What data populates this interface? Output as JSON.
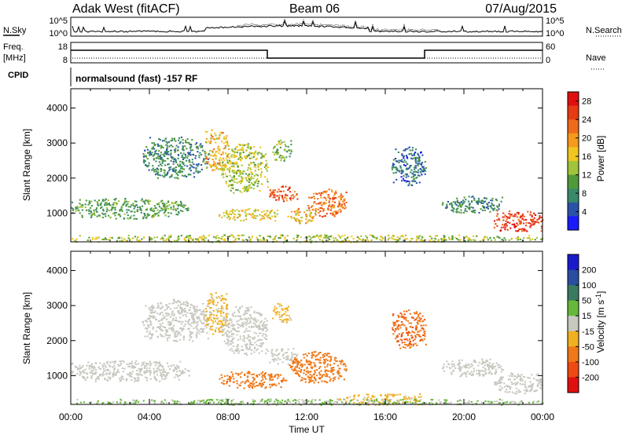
{
  "header": {
    "station": "Adak West (fitACF)",
    "beam": "Beam 06",
    "date": "07/Aug/2015"
  },
  "status_panels": {
    "nsky_label": "N.Sky",
    "nsky_ticks": [
      "10^5",
      "10^0"
    ],
    "nsearch_label": "N.Search",
    "nsearch_ticks": [
      "10^5",
      "10^0"
    ],
    "freq_label": "Freq.",
    "freq_unit": "[MHz]",
    "freq_ticks": [
      "18",
      "8"
    ],
    "nave_label": "Nave",
    "nave_ticks": [
      "60",
      "0"
    ],
    "cpid_label": "CPID",
    "cpid_text": "normalsound (fast) -157 RF"
  },
  "colors": {
    "power_scale": [
      "#1a1aff",
      "#2a53a8",
      "#3a8a6a",
      "#4f9a3a",
      "#a0c43a",
      "#f2c61f",
      "#f59a1c",
      "#f06a1a",
      "#e83a14",
      "#e01010"
    ],
    "velocity_scale": [
      "#1a1acc",
      "#2a4ea0",
      "#3a7a60",
      "#66b83a",
      "#c8c8c0",
      "#f0b020",
      "#f07818",
      "#ee4a12",
      "#e01010"
    ]
  },
  "chart_data": [
    {
      "type": "heatmap",
      "title": "",
      "xlabel": "",
      "ylabel": "Slant Range [km]",
      "x_ticks": [
        "00:00",
        "04:00",
        "08:00",
        "12:00",
        "16:00",
        "20:00",
        "00:00"
      ],
      "y_ticks": [
        "1000",
        "2000",
        "3000",
        "4000"
      ],
      "xlim": [
        0,
        24
      ],
      "ylim": [
        180,
        4550
      ],
      "colorbar": {
        "label": "Power [dB]",
        "ticks": [
          "4",
          "8",
          "12",
          "16",
          "20",
          "24",
          "28"
        ],
        "range": [
          0,
          30
        ]
      },
      "regions": [
        {
          "t0": 0.0,
          "t1": 6.0,
          "r0": 850,
          "r1": 1450,
          "value": 10
        },
        {
          "t0": 3.6,
          "t1": 7.0,
          "r0": 2000,
          "r1": 3200,
          "value": 8
        },
        {
          "t0": 6.8,
          "t1": 8.0,
          "r0": 2200,
          "r1": 3400,
          "value": 18
        },
        {
          "t0": 7.6,
          "t1": 10.0,
          "r0": 1600,
          "r1": 3000,
          "value": 14
        },
        {
          "t0": 7.5,
          "t1": 10.5,
          "r0": 800,
          "r1": 1150,
          "value": 16
        },
        {
          "t0": 10.0,
          "t1": 11.5,
          "r0": 1350,
          "r1": 1800,
          "value": 24
        },
        {
          "t0": 11.0,
          "t1": 12.5,
          "r0": 700,
          "r1": 1150,
          "value": 18
        },
        {
          "t0": 12.0,
          "t1": 14.0,
          "r0": 900,
          "r1": 1700,
          "value": 22
        },
        {
          "t0": 10.2,
          "t1": 11.2,
          "r0": 2500,
          "r1": 3100,
          "value": 12
        },
        {
          "t0": 16.3,
          "t1": 18.1,
          "r0": 1800,
          "r1": 2900,
          "value": 6
        },
        {
          "t0": 18.8,
          "t1": 22.0,
          "r0": 1000,
          "r1": 1500,
          "value": 8
        },
        {
          "t0": 21.5,
          "t1": 24.0,
          "r0": 500,
          "r1": 1100,
          "value": 26
        },
        {
          "t0": 0.0,
          "t1": 24.0,
          "r0": 180,
          "r1": 400,
          "value": 14
        }
      ]
    },
    {
      "type": "heatmap",
      "title": "",
      "xlabel": "Time UT",
      "ylabel": "Slant Range [km]",
      "x_ticks": [
        "00:00",
        "04:00",
        "08:00",
        "12:00",
        "16:00",
        "20:00",
        "00:00"
      ],
      "y_ticks": [
        "1000",
        "2000",
        "3000",
        "4000"
      ],
      "xlim": [
        0,
        24
      ],
      "ylim": [
        180,
        4550
      ],
      "colorbar": {
        "label": "Velocity [m s^-1]",
        "ticks": [
          "200",
          "100",
          "50",
          "15",
          "-15",
          "-50",
          "-100",
          "-200"
        ],
        "range": [
          -250,
          250
        ]
      },
      "regions": [
        {
          "t0": 0.0,
          "t1": 6.0,
          "r0": 850,
          "r1": 1450,
          "value": 0
        },
        {
          "t0": 3.6,
          "t1": 7.0,
          "r0": 2000,
          "r1": 3200,
          "value": 0
        },
        {
          "t0": 6.8,
          "t1": 8.0,
          "r0": 2200,
          "r1": 3400,
          "value": -40
        },
        {
          "t0": 7.6,
          "t1": 10.0,
          "r0": 1600,
          "r1": 3000,
          "value": 0
        },
        {
          "t0": 7.5,
          "t1": 11.0,
          "r0": 650,
          "r1": 1150,
          "value": -120
        },
        {
          "t0": 10.0,
          "t1": 11.5,
          "r0": 1350,
          "r1": 1800,
          "value": 0
        },
        {
          "t0": 11.0,
          "t1": 14.0,
          "r0": 800,
          "r1": 1700,
          "value": -110
        },
        {
          "t0": 10.2,
          "t1": 11.2,
          "r0": 2500,
          "r1": 3100,
          "value": -40
        },
        {
          "t0": 16.3,
          "t1": 18.1,
          "r0": 1800,
          "r1": 2900,
          "value": -130
        },
        {
          "t0": 18.8,
          "t1": 22.0,
          "r0": 1000,
          "r1": 1500,
          "value": 0
        },
        {
          "t0": 21.5,
          "t1": 24.0,
          "r0": 500,
          "r1": 1100,
          "value": 0
        },
        {
          "t0": 13.5,
          "t1": 18.0,
          "r0": 180,
          "r1": 500,
          "value": -40
        },
        {
          "t0": 0.0,
          "t1": 24.0,
          "r0": 180,
          "r1": 350,
          "value": 30
        }
      ]
    }
  ]
}
